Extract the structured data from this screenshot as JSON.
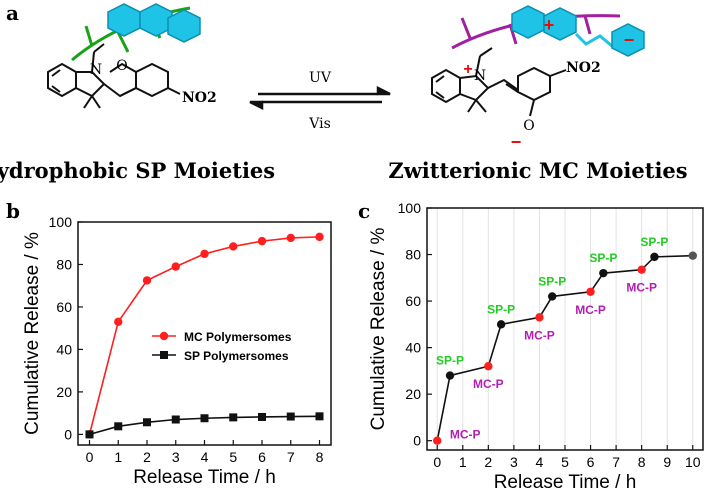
{
  "panels": {
    "a": {
      "letter": "a",
      "arrow_top": "UV",
      "arrow_bottom": "Vis",
      "left_title": "Hydrophobic SP Moieties",
      "right_title": "Zwitterionic MC Moieties",
      "left_group": "NO2",
      "right_group": "NO2",
      "left_atoms": [
        "N",
        "O"
      ],
      "right_atoms": [
        "N",
        "O"
      ],
      "plus_sign": "+",
      "minus_sign": "−"
    },
    "b": {
      "letter": "b"
    },
    "c": {
      "letter": "c"
    }
  },
  "colors": {
    "mc": "#ff1f1f",
    "sp": "#111111",
    "green_chain": "#1aa11a",
    "purple_chain": "#a020a0",
    "aromatic_blue": "#1fc3e6",
    "spp_label": "#22cc22",
    "mcp_label": "#b01fb0"
  },
  "icons": [
    "polymer-chain-icon",
    "aromatic-moiety-icon"
  ],
  "chart_data": [
    {
      "type": "line",
      "panel": "b",
      "xlabel": "Release Time / h",
      "ylabel": "Cumulative Release / %",
      "xlim": [
        -0.4,
        8.4
      ],
      "ylim": [
        -5,
        100
      ],
      "xticks": [
        0,
        1,
        2,
        3,
        4,
        5,
        6,
        7,
        8
      ],
      "yticks": [
        0,
        20,
        40,
        60,
        80,
        100
      ],
      "grid": false,
      "legend_position": "center-right",
      "series": [
        {
          "name": "MC Polymersomes",
          "color": "#ff1f1f",
          "marker": "circle",
          "x": [
            0,
            1,
            2,
            3,
            4,
            5,
            6,
            7,
            8
          ],
          "y": [
            0,
            53,
            72.5,
            79,
            85,
            88.5,
            91,
            92.5,
            93
          ]
        },
        {
          "name": "SP Polymersomes",
          "color": "#111111",
          "marker": "square",
          "x": [
            0,
            1,
            2,
            3,
            4,
            5,
            6,
            7,
            8
          ],
          "y": [
            0,
            3.8,
            5.7,
            7,
            7.6,
            8,
            8.2,
            8.4,
            8.5
          ]
        }
      ]
    },
    {
      "type": "line",
      "panel": "c",
      "xlabel": "Release Time / h",
      "ylabel": "Cumulative Release / %",
      "xlim": [
        -0.4,
        10.4
      ],
      "ylim": [
        -4,
        100
      ],
      "xticks": [
        0,
        1,
        2,
        3,
        4,
        5,
        6,
        7,
        8,
        9,
        10
      ],
      "yticks": [
        0,
        20,
        40,
        60,
        80,
        100
      ],
      "grid": true,
      "series": [
        {
          "name": "",
          "color": "#111111",
          "x": [
            0,
            0.5,
            2,
            2.5,
            4,
            4.5,
            6,
            6.5,
            8,
            8.5,
            10
          ],
          "y": [
            0,
            28,
            32,
            50,
            53,
            62,
            64,
            72,
            73.5,
            79,
            79.5
          ],
          "point_colors": [
            "#ff1f1f",
            "#111111",
            "#ff1f1f",
            "#111111",
            "#ff1f1f",
            "#111111",
            "#ff1f1f",
            "#111111",
            "#ff1f1f",
            "#111111",
            "#555555"
          ]
        }
      ],
      "annotations": [
        {
          "text": "MC-P",
          "x": 0,
          "y": 0,
          "color": "#b01fb0"
        },
        {
          "text": "SP-P",
          "x": 0.5,
          "y": 28,
          "color": "#22cc22"
        },
        {
          "text": "MC-P",
          "x": 2,
          "y": 32,
          "color": "#b01fb0"
        },
        {
          "text": "SP-P",
          "x": 2.5,
          "y": 50,
          "color": "#22cc22"
        },
        {
          "text": "MC-P",
          "x": 4,
          "y": 53,
          "color": "#b01fb0"
        },
        {
          "text": "SP-P",
          "x": 4.5,
          "y": 62,
          "color": "#22cc22"
        },
        {
          "text": "MC-P",
          "x": 6,
          "y": 64,
          "color": "#b01fb0"
        },
        {
          "text": "SP-P",
          "x": 6.5,
          "y": 72,
          "color": "#22cc22"
        },
        {
          "text": "MC-P",
          "x": 8,
          "y": 73.5,
          "color": "#b01fb0"
        },
        {
          "text": "SP-P",
          "x": 8.5,
          "y": 79,
          "color": "#22cc22"
        }
      ]
    }
  ]
}
